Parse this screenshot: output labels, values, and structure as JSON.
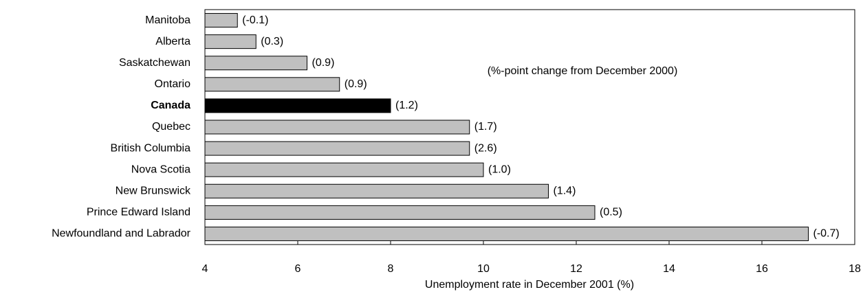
{
  "chart_data": {
    "type": "hbar",
    "categories": [
      "Manitoba",
      "Alberta",
      "Saskatchewan",
      "Ontario",
      "Canada",
      "Quebec",
      "British Columbia",
      "Nova Scotia",
      "New Brunswick",
      "Prince Edward Island",
      "Newfoundland and Labrador"
    ],
    "values": [
      4.7,
      5.1,
      6.2,
      6.9,
      8.0,
      9.7,
      9.7,
      10.0,
      11.4,
      12.4,
      17.0
    ],
    "changes": [
      "(-0.1)",
      "(0.3)",
      "(0.9)",
      "(0.9)",
      "(1.2)",
      "(1.7)",
      "(2.6)",
      "(1.0)",
      "(1.4)",
      "(0.5)",
      "(-0.7)"
    ],
    "color": "#c0c0c0",
    "highlight": "Canada",
    "highlight_color": "#000000",
    "annotation": "(%-point change from December 2000)",
    "x_label": "Unemployment rate in December 2001 (%)",
    "xlim": [
      4,
      18
    ],
    "xticks": [
      4,
      6,
      8,
      10,
      12,
      14,
      16,
      18
    ],
    "grid": false
  }
}
